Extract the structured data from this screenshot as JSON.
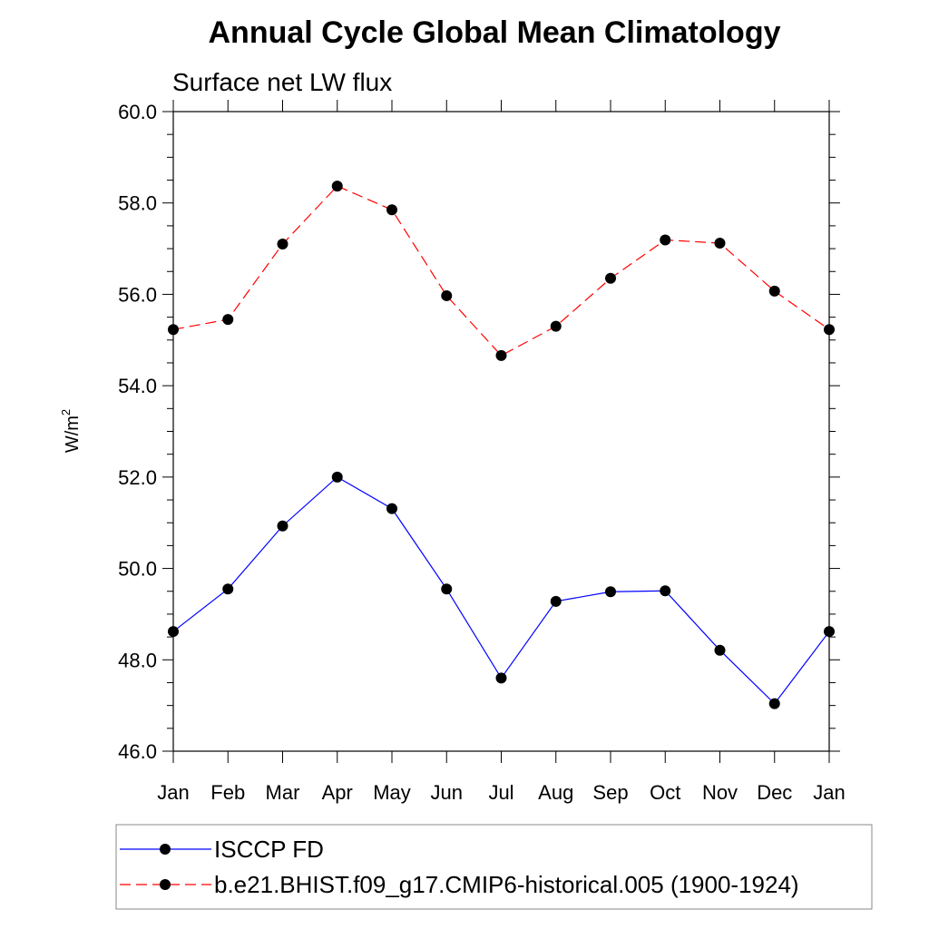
{
  "chart_data": {
    "type": "line",
    "title": "Annual Cycle Global Mean Climatology",
    "subtitle": "Surface net LW flux",
    "ylabel_base": "W/m",
    "ylabel_sup": "2",
    "xlabel": "",
    "categories": [
      "Jan",
      "Feb",
      "Mar",
      "Apr",
      "May",
      "Jun",
      "Jul",
      "Aug",
      "Sep",
      "Oct",
      "Nov",
      "Dec",
      "Jan"
    ],
    "ylim": [
      46.0,
      60.0
    ],
    "yticks": [
      "60.0",
      "58.0",
      "56.0",
      "54.0",
      "52.0",
      "50.0",
      "48.0",
      "46.0"
    ],
    "ytick_values": [
      60,
      58,
      56,
      54,
      52,
      50,
      48,
      46
    ],
    "series": [
      {
        "name": "ISCCP FD",
        "color": "#0000ff",
        "style": "solid",
        "values": [
          48.62,
          49.55,
          50.93,
          52.0,
          51.31,
          49.55,
          47.6,
          49.28,
          49.49,
          49.51,
          48.21,
          47.04,
          48.62
        ]
      },
      {
        "name": "b.e21.BHIST.f09_g17.CMIP6-historical.005 (1900-1924)",
        "color": "#ff0000",
        "style": "dashed",
        "values": [
          55.23,
          55.45,
          57.1,
          58.37,
          57.85,
          55.97,
          54.66,
          55.3,
          56.35,
          57.19,
          57.12,
          56.07,
          55.23
        ]
      }
    ]
  }
}
